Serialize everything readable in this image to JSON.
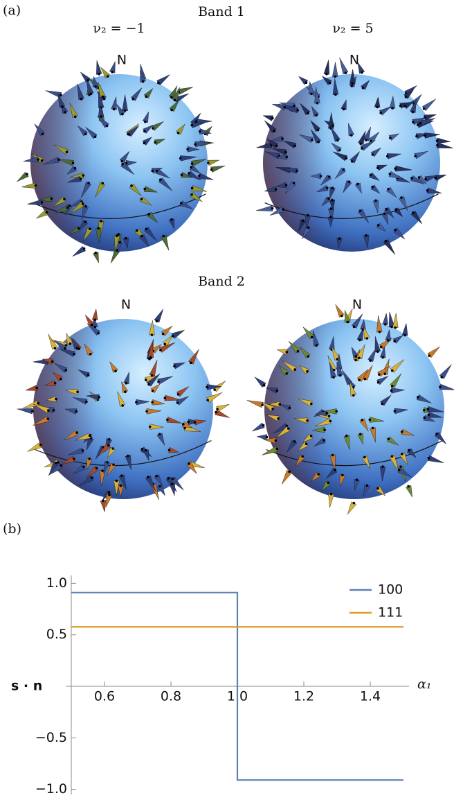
{
  "panel_a": {
    "label": "(a)",
    "band1": "Band 1",
    "band2": "Band 2",
    "col_left": "ν₂ = −1",
    "col_right": "ν₂ = 5",
    "pole": [
      "N",
      "N",
      "N",
      "N"
    ]
  },
  "chart_data": {
    "type": "line",
    "panel_label": "(b)",
    "x_label": "α₁",
    "y_label": "s · n",
    "x": [
      0.5,
      1.0,
      1.0,
      1.5
    ],
    "series": [
      {
        "name": "100",
        "color": "#5e81b5",
        "values": [
          0.91,
          0.91,
          -0.91,
          -0.91
        ]
      },
      {
        "name": "111",
        "color": "#e19c24",
        "values": [
          0.577,
          0.577,
          0.577,
          0.577
        ]
      }
    ],
    "xlim": [
      0.5,
      1.5
    ],
    "ylim": [
      -1.05,
      1.05
    ],
    "xticks": [
      0.6,
      0.8,
      {
        "value": 1,
        "label": "1.0"
      },
      1.2,
      1.4
    ],
    "yticks": [
      {
        "value": -1,
        "label": "−1.0"
      },
      {
        "value": -0.5,
        "label": "−0.5"
      },
      {
        "value": 0.5,
        "label": "0.5"
      },
      {
        "value": 1,
        "label": "1.0"
      }
    ],
    "legend": "top-right",
    "grid": false
  }
}
